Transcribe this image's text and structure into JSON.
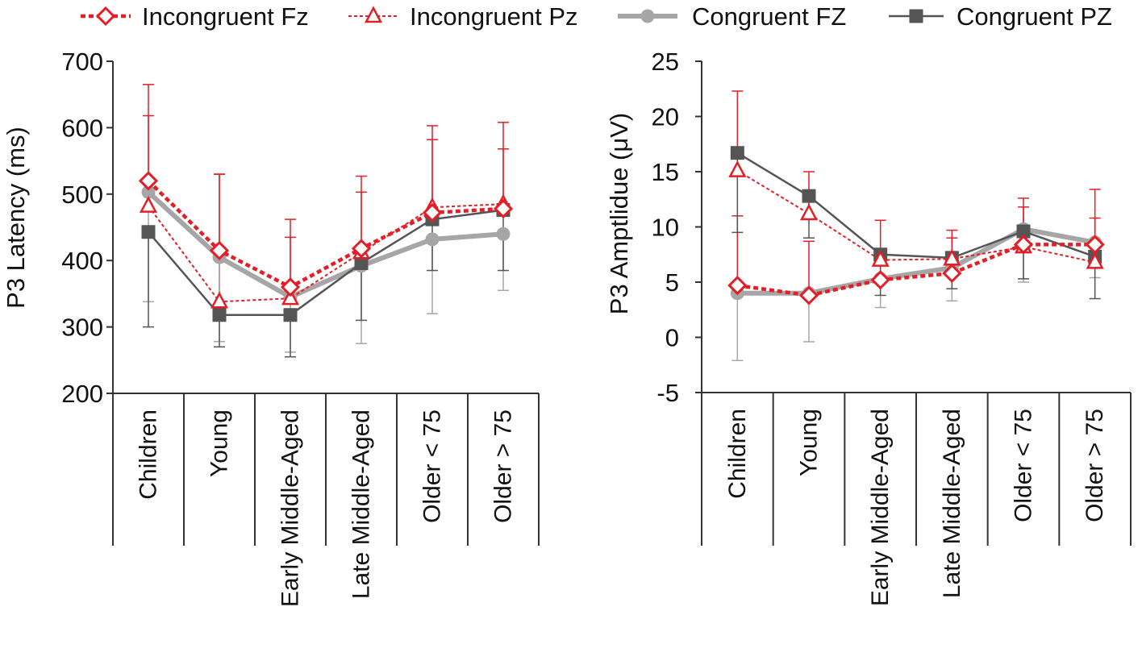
{
  "chart_data": [
    {
      "type": "line",
      "title": "",
      "xlabel": "",
      "ylabel": "P3 Latency  (ms)",
      "ylim": [
        200,
        700
      ],
      "yticks": [
        200,
        300,
        400,
        500,
        600,
        700
      ],
      "categories": [
        "Children",
        "Young",
        "Early Middle-Aged",
        "Late Middle-Aged",
        "Older < 75",
        "Older > 75"
      ],
      "series": [
        {
          "name": "Incongruent Fz",
          "values": [
            520,
            415,
            360,
            418,
            472,
            478
          ],
          "err_upper": [
            665,
            530,
            462,
            527,
            603,
            608
          ]
        },
        {
          "name": "Incongruent Pz",
          "values": [
            482,
            338,
            343,
            412,
            480,
            485
          ],
          "err_upper": [
            618,
            530,
            435,
            503,
            582,
            568
          ]
        },
        {
          "name": "Congruent FZ",
          "values": [
            503,
            405,
            345,
            392,
            432,
            440
          ],
          "err_lower": [
            338,
            278,
            262,
            275,
            320,
            355
          ]
        },
        {
          "name": "Congruent PZ",
          "values": [
            443,
            318,
            318,
            396,
            462,
            476
          ],
          "err_lower": [
            300,
            270,
            255,
            310,
            385,
            385
          ]
        }
      ]
    },
    {
      "type": "line",
      "title": "",
      "xlabel": "",
      "ylabel": "P3 Amptlidue  (μV)",
      "ylim": [
        -5,
        25
      ],
      "yticks": [
        -5,
        0,
        5,
        10,
        15,
        20,
        25
      ],
      "categories": [
        "Children",
        "Young",
        "Early Middle-Aged",
        "Late Middle-Aged",
        "Older < 75",
        "Older > 75"
      ],
      "series": [
        {
          "name": "Incongruent Fz",
          "values": [
            4.7,
            3.8,
            5.2,
            5.8,
            8.4,
            8.4
          ],
          "err_upper": [
            11.0,
            8.7,
            7.0,
            9.7,
            11.8,
            10.8
          ]
        },
        {
          "name": "Incongruent Pz",
          "values": [
            15.1,
            11.2,
            7.0,
            7.1,
            8.2,
            6.8
          ],
          "err_upper": [
            22.3,
            15.0,
            10.6,
            9.0,
            12.6,
            13.4
          ]
        },
        {
          "name": "Congruent FZ",
          "values": [
            4.0,
            4.0,
            5.3,
            6.3,
            9.8,
            8.6
          ],
          "err_lower": [
            -2.1,
            -0.4,
            2.7,
            3.3,
            5.0,
            5.4
          ]
        },
        {
          "name": "Congruent PZ",
          "values": [
            16.7,
            12.8,
            7.5,
            7.2,
            9.6,
            7.3
          ],
          "err_lower": [
            9.5,
            9.0,
            3.8,
            4.4,
            5.3,
            3.5
          ]
        }
      ]
    }
  ],
  "legend": {
    "placement": "top",
    "items": [
      "Incongruent Fz",
      "Incongruent Pz",
      "Congruent FZ",
      "Congruent PZ"
    ]
  },
  "colors": {
    "incongruent": "#e41e26",
    "congruent_fz": "#a6a6a6",
    "congruent_pz": "#555555"
  }
}
